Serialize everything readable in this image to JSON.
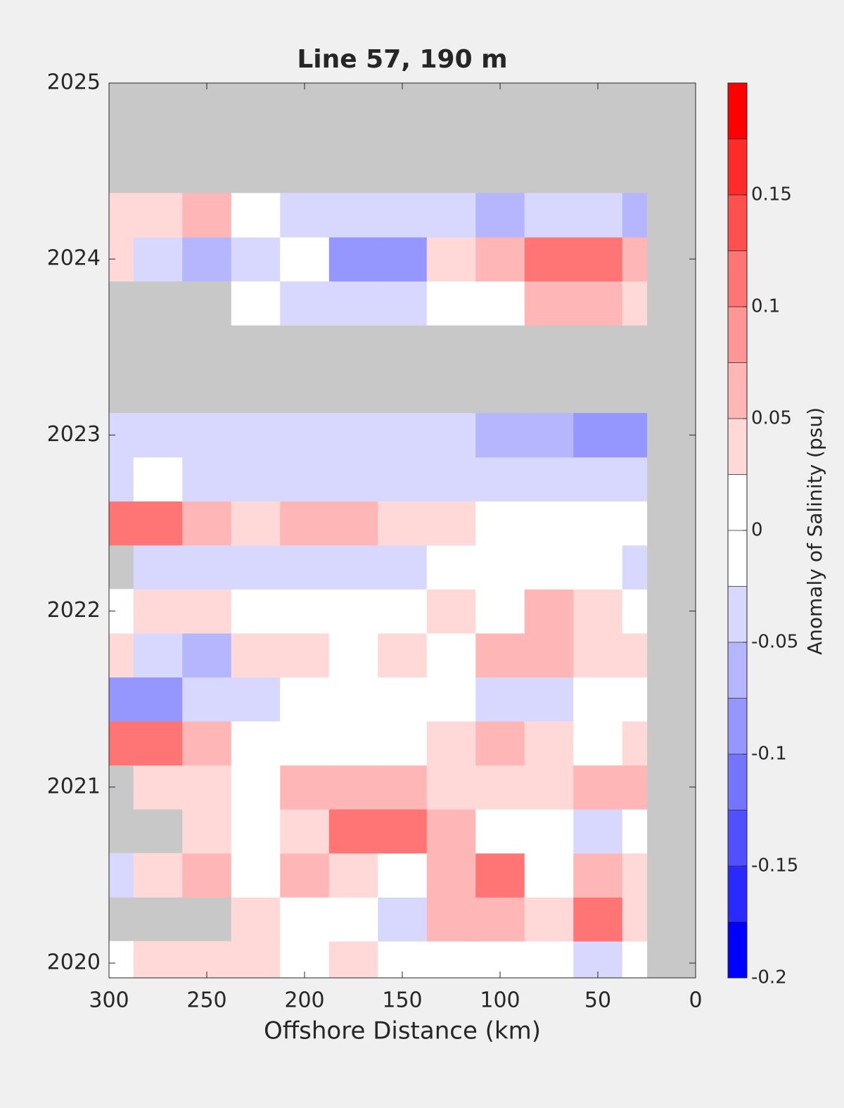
{
  "chart_data": {
    "type": "contour",
    "title": "Line 57, 190 m",
    "xlabel": "Offshore Distance (km)",
    "colorbar_label": "Anomaly of Salinity (psu)",
    "x": [
      300,
      275,
      250,
      225,
      200,
      175,
      150,
      125,
      100,
      75,
      50,
      25
    ],
    "y": [
      2020,
      2020.25,
      2020.5,
      2020.75,
      2021,
      2021.25,
      2021.5,
      2021.75,
      2022,
      2022.25,
      2022.5,
      2022.75,
      2023,
      2023.25,
      2023.5,
      2023.75,
      2024,
      2024.25
    ],
    "z": [
      [
        0,
        0.03,
        0.03,
        0.03,
        0,
        0.03,
        0,
        0,
        0,
        0,
        -0.04,
        0
      ],
      [
        null,
        null,
        null,
        0.03,
        0,
        0,
        -0.03,
        0.07,
        0.05,
        0.03,
        0.1,
        0.03
      ],
      [
        -0.04,
        0.03,
        0.05,
        0,
        0.05,
        0.03,
        0,
        0.05,
        0.1,
        0,
        0.05,
        0.03
      ],
      [
        null,
        null,
        0.03,
        0,
        0.03,
        0.1,
        0.1,
        0.05,
        0,
        0,
        -0.04,
        0
      ],
      [
        null,
        0.03,
        0.03,
        0,
        0.05,
        0.07,
        0.07,
        0.03,
        0.03,
        0.03,
        0.05,
        0.05
      ],
      [
        0.1,
        0.1,
        0.05,
        0,
        0,
        0,
        0,
        0.03,
        0.05,
        0.03,
        0,
        0.03
      ],
      [
        -0.1,
        -0.1,
        -0.05,
        -0.03,
        0,
        0,
        0,
        0,
        -0.03,
        -0.03,
        0,
        0
      ],
      [
        0.03,
        -0.05,
        -0.07,
        0.03,
        0.03,
        0,
        0.03,
        0,
        0.05,
        0.07,
        0.03,
        0.03
      ],
      [
        0,
        0.03,
        0.03,
        0,
        0,
        0,
        0,
        0.03,
        0,
        0.05,
        0.03,
        0
      ],
      [
        null,
        -0.03,
        -0.03,
        -0.03,
        -0.05,
        -0.05,
        -0.03,
        0,
        0,
        0,
        0,
        -0.03
      ],
      [
        0.12,
        0.1,
        0.05,
        0.03,
        0.07,
        0.07,
        0.03,
        0.03,
        0,
        0,
        0,
        0
      ],
      [
        -0.03,
        0,
        -0.03,
        -0.03,
        -0.05,
        -0.05,
        -0.03,
        -0.03,
        -0.05,
        -0.05,
        -0.05,
        -0.03
      ],
      [
        -0.03,
        -0.05,
        -0.05,
        -0.03,
        -0.05,
        -0.05,
        -0.05,
        -0.05,
        -0.07,
        -0.07,
        -0.1,
        -0.1
      ],
      [
        null,
        null,
        null,
        null,
        null,
        null,
        null,
        null,
        null,
        null,
        null,
        null
      ],
      [
        null,
        null,
        null,
        null,
        null,
        null,
        null,
        null,
        null,
        null,
        null,
        null
      ],
      [
        null,
        null,
        null,
        0,
        -0.03,
        -0.05,
        -0.03,
        0,
        0,
        0.05,
        0.05,
        0.03
      ],
      [
        0.03,
        -0.05,
        -0.07,
        -0.03,
        0,
        -0.1,
        -0.1,
        0.03,
        0.07,
        0.1,
        0.12,
        0.05
      ],
      [
        0.03,
        0.03,
        0.05,
        0,
        -0.03,
        -0.05,
        -0.03,
        -0.05,
        -0.07,
        -0.03,
        -0.05,
        -0.07
      ]
    ],
    "xlim": [
      300,
      0
    ],
    "ylim": [
      2019.916,
      2025
    ],
    "xticks": [
      300,
      250,
      200,
      150,
      100,
      50,
      0
    ],
    "yticks": [
      2020,
      2021,
      2022,
      2023,
      2024,
      2025
    ],
    "levels": [
      -0.2,
      -0.175,
      -0.15,
      -0.125,
      -0.1,
      -0.075,
      -0.05,
      -0.025,
      0,
      0.025,
      0.05,
      0.075,
      0.1,
      0.125,
      0.15,
      0.175,
      0.2
    ],
    "colors": [
      "#0000ff",
      "#2a2aff",
      "#5050ff",
      "#7474ff",
      "#9696ff",
      "#b6b6ff",
      "#d8d8ff",
      "#ffffff",
      "#ffffff",
      "#ffd8d8",
      "#ffb6b6",
      "#ff9696",
      "#ff7474",
      "#ff5050",
      "#ff2a2a",
      "#ff0000"
    ],
    "cticks": [
      -0.2,
      -0.15,
      -0.1,
      -0.05,
      0,
      0.05,
      0.1,
      0.15
    ],
    "nan_color": "#c8c8c8"
  }
}
